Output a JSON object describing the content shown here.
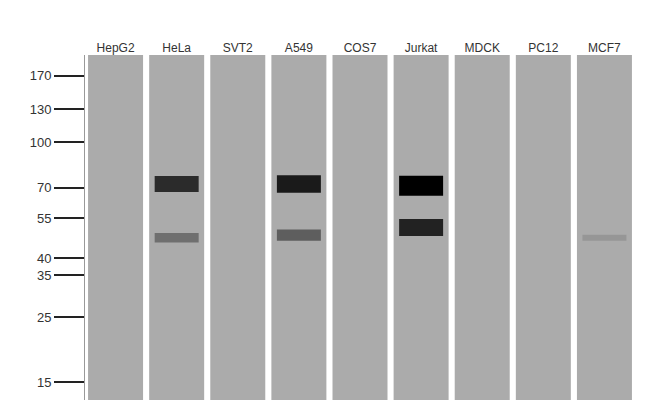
{
  "chart_data": {
    "type": "western_blot",
    "categories": [
      "HepG2",
      "HeLa",
      "SVT2",
      "A549",
      "COS7",
      "Jurkat",
      "MDCK",
      "PC12",
      "MCF7"
    ],
    "ylim": [
      13,
      200
    ],
    "yticks": [
      170,
      130,
      100,
      70,
      55,
      40,
      35,
      25,
      15
    ],
    "log": "y",
    "grid": false,
    "bands": [
      {
        "lane": "HeLa",
        "kda": 72,
        "intensity": 0.75
      },
      {
        "lane": "HeLa",
        "kda": 47,
        "intensity": 0.35
      },
      {
        "lane": "A549",
        "kda": 72,
        "intensity": 0.85
      },
      {
        "lane": "A549",
        "kda": 48,
        "intensity": 0.45
      },
      {
        "lane": "Jurkat",
        "kda": 71,
        "intensity": 1.0
      },
      {
        "lane": "Jurkat",
        "kda": 51,
        "intensity": 0.8
      },
      {
        "lane": "MCF7",
        "kda": 47,
        "intensity": 0.12
      }
    ]
  }
}
